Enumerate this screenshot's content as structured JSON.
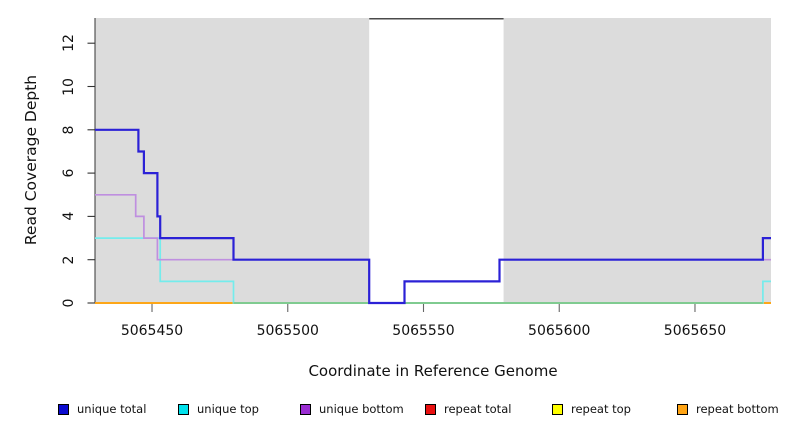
{
  "chart_data": {
    "type": "line",
    "subtype": "step-coverage",
    "title": "",
    "xlabel": "Coordinate in Reference Genome",
    "ylabel": "Read Coverage Depth",
    "x_domain": [
      5065429,
      5065678
    ],
    "y_domain": [
      0,
      13.16
    ],
    "x_ticks": [
      5065450,
      5065500,
      5065550,
      5065600,
      5065650
    ],
    "y_ticks": [
      0,
      2,
      4,
      6,
      8,
      10,
      12
    ],
    "grid": false,
    "legend_position": "bottom",
    "plot_background_color": "#dcdcdc",
    "uncovered_band": {
      "x_start": 5065530,
      "x_end": 5065579.5,
      "fill": "#ffffff",
      "top_line_color": "#4a4a4a"
    },
    "series": [
      {
        "name": "unique total",
        "legend_color": "#0b0bd0",
        "line_color": "#2b21d6",
        "line_width": 2.2,
        "steps": [
          [
            5065429,
            8
          ],
          [
            5065445,
            7
          ],
          [
            5065447,
            6
          ],
          [
            5065452,
            4
          ],
          [
            5065453,
            3
          ],
          [
            5065480,
            2
          ],
          [
            5065530,
            0
          ],
          [
            5065543,
            1
          ],
          [
            5065578,
            2
          ],
          [
            5065675,
            3
          ],
          [
            5065678,
            3
          ]
        ]
      },
      {
        "name": "unique top",
        "legend_color": "#00e1ec",
        "line_color": "#74ecec",
        "line_width": 1.7,
        "steps": [
          [
            5065429,
            3
          ],
          [
            5065453,
            1
          ],
          [
            5065480,
            0
          ],
          [
            5065675,
            1
          ],
          [
            5065678,
            1
          ]
        ]
      },
      {
        "name": "unique bottom",
        "legend_color": "#9a2dd2",
        "line_color": "#bf8fe0",
        "line_width": 1.7,
        "steps": [
          [
            5065429,
            5
          ],
          [
            5065444,
            4
          ],
          [
            5065447,
            3
          ],
          [
            5065452,
            2
          ],
          [
            5065530,
            0
          ],
          [
            5065543,
            1
          ],
          [
            5065578,
            2
          ],
          [
            5065678,
            2
          ]
        ]
      },
      {
        "name": "repeat total",
        "legend_color": "#e91010",
        "line_color": "#e91010",
        "line_width": 1.5,
        "steps": [
          [
            5065429,
            0
          ],
          [
            5065678,
            0
          ]
        ]
      },
      {
        "name": "repeat top",
        "legend_color": "#ffff00",
        "line_color": "#ffff00",
        "line_width": 1.5,
        "steps": [
          [
            5065429,
            0
          ],
          [
            5065678,
            0
          ]
        ]
      },
      {
        "name": "repeat bottom",
        "legend_color": "#ffa414",
        "line_color": "#ffa414",
        "line_width": 1.8,
        "steps": [
          [
            5065429,
            0
          ],
          [
            5065678,
            0
          ]
        ]
      }
    ],
    "zero_line_overlay": {
      "color": "#7cc98b",
      "x_start": 5065480,
      "x_end": 5065675,
      "y": 0,
      "note": "zero-coverage line renders green between these coordinates"
    },
    "draw_order": [
      "repeat total",
      "repeat top",
      "repeat bottom",
      "unique top",
      "zero_overlay",
      "unique bottom",
      "unique total"
    ]
  }
}
